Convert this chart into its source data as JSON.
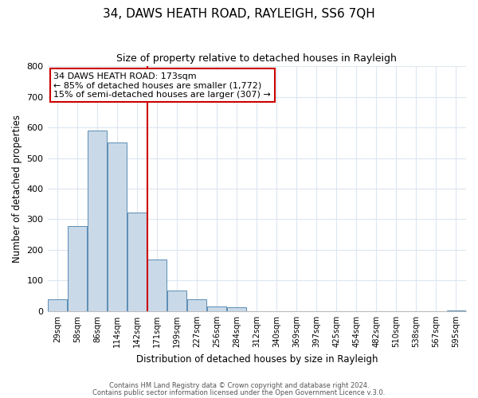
{
  "title": "34, DAWS HEATH ROAD, RAYLEIGH, SS6 7QH",
  "subtitle": "Size of property relative to detached houses in Rayleigh",
  "xlabel": "Distribution of detached houses by size in Rayleigh",
  "ylabel": "Number of detached properties",
  "bin_labels": [
    "29sqm",
    "58sqm",
    "86sqm",
    "114sqm",
    "142sqm",
    "171sqm",
    "199sqm",
    "227sqm",
    "256sqm",
    "284sqm",
    "312sqm",
    "340sqm",
    "369sqm",
    "397sqm",
    "425sqm",
    "454sqm",
    "482sqm",
    "510sqm",
    "538sqm",
    "567sqm",
    "595sqm"
  ],
  "bar_heights": [
    38,
    278,
    590,
    550,
    322,
    170,
    68,
    38,
    15,
    12,
    0,
    0,
    0,
    0,
    0,
    0,
    0,
    0,
    0,
    0,
    2
  ],
  "bar_color": "#c9d9e8",
  "bar_edge_color": "#5a8db5",
  "vline_index": 5,
  "vline_color": "#cc0000",
  "ylim": [
    0,
    800
  ],
  "yticks": [
    0,
    100,
    200,
    300,
    400,
    500,
    600,
    700,
    800
  ],
  "annotation_title": "34 DAWS HEATH ROAD: 173sqm",
  "annotation_line1": "← 85% of detached houses are smaller (1,772)",
  "annotation_line2": "15% of semi-detached houses are larger (307) →",
  "annotation_box_color": "#ffffff",
  "annotation_box_edge": "#cc0000",
  "footer1": "Contains HM Land Registry data © Crown copyright and database right 2024.",
  "footer2": "Contains public sector information licensed under the Open Government Licence v.3.0.",
  "background_color": "#ffffff",
  "grid_color": "#dce6f0"
}
